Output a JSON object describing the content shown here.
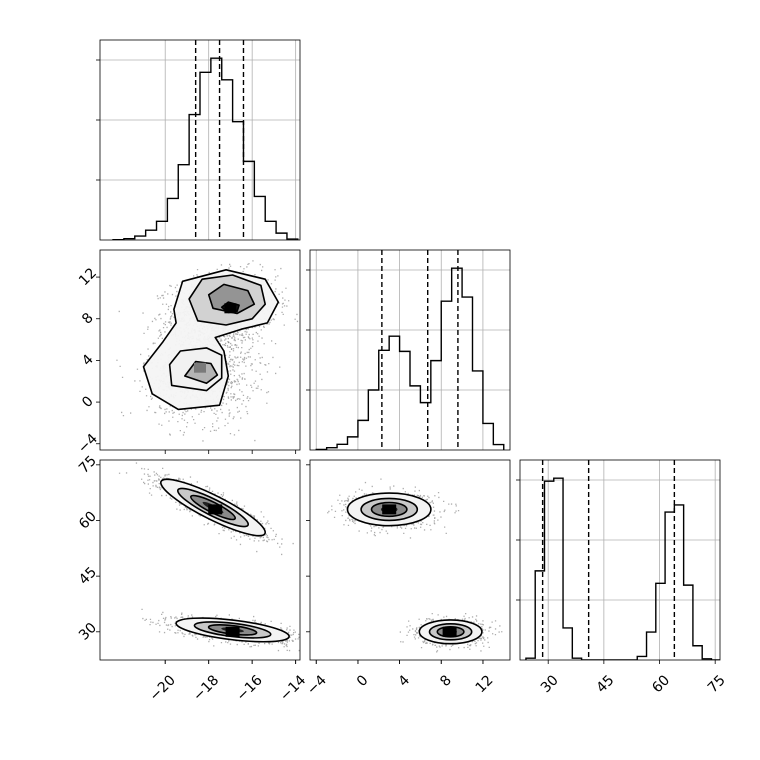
{
  "chart_data": {
    "type": "corner",
    "parameters": [
      {
        "range": [
          -23,
          -13.8
        ],
        "ticks": [
          -20,
          -18,
          -16,
          -14
        ],
        "tick_labels": [
          "−20",
          "−18",
          "−16",
          "−14"
        ],
        "quantiles": [
          -18.6,
          -17.5,
          -16.4
        ],
        "hist_bins": [
          -22.4,
          -21.9,
          -21.4,
          -20.9,
          -20.4,
          -19.9,
          -19.4,
          -18.9,
          -18.4,
          -17.9,
          -17.4,
          -16.9,
          -16.4,
          -15.9,
          -15.4,
          -14.9,
          -14.4,
          -13.9
        ],
        "hist_counts": [
          1,
          4,
          12,
          30,
          57,
          127,
          230,
          383,
          512,
          555,
          489,
          361,
          240,
          133,
          57,
          21,
          3
        ]
      },
      {
        "range": [
          -4.6,
          14.6
        ],
        "ticks": [
          -4,
          0,
          4,
          8,
          12
        ],
        "tick_labels": [
          "−4",
          "0",
          "4",
          "8",
          "12"
        ],
        "quantiles": [
          2.3,
          6.7,
          9.6
        ],
        "hist_bins": [
          -4,
          -3,
          -2,
          -1,
          0,
          1,
          2,
          3,
          4,
          5,
          6,
          7,
          8,
          9,
          10,
          11,
          12,
          13,
          14
        ],
        "hist_counts": [
          2,
          9,
          22,
          51,
          115,
          233,
          387,
          442,
          383,
          249,
          184,
          347,
          578,
          706,
          594,
          307,
          103,
          21
        ]
      },
      {
        "range": [
          22.4,
          76.3
        ],
        "ticks": [
          30,
          45,
          60,
          75
        ],
        "tick_labels": [
          "30",
          "45",
          "60",
          "75"
        ],
        "quantiles": [
          28.5,
          40.9,
          64
        ],
        "hist_bins": [
          24,
          26.5,
          29,
          31.5,
          34,
          36.5,
          39,
          41.5,
          44,
          46.5,
          49,
          51.5,
          54,
          56.5,
          59,
          61.5,
          64,
          66.5,
          69,
          71.5,
          74,
          76.5
        ],
        "hist_counts": [
          3,
          150,
          301,
          306,
          54,
          3,
          0,
          0,
          0,
          0,
          0,
          0,
          6,
          47,
          129,
          249,
          261,
          126,
          24,
          2,
          0
        ]
      }
    ],
    "pairs": [
      {
        "x_param": 0,
        "y_param": 1,
        "clusters": [
          {
            "center": [
              -17.3,
              9
            ],
            "sigma": [
              1.2,
              1.7
            ],
            "rho": 0.15,
            "weight": 0.55,
            "peak": [
              -17,
              9
            ]
          },
          {
            "center": [
              -18.4,
              3
            ],
            "sigma": [
              1.2,
              2.3
            ],
            "rho": 0.0,
            "weight": 0.45,
            "peak": [
              -18.4,
              3.3
            ]
          }
        ],
        "contours": [
          [
            [
              -19.6,
              8.9
            ],
            [
              -19.2,
              11.6
            ],
            [
              -17.2,
              12.7
            ],
            [
              -15.4,
              11.8
            ],
            [
              -14.8,
              9.6
            ],
            [
              -15.3,
              7.6
            ],
            [
              -16.5,
              7
            ],
            [
              -17.7,
              6.2
            ],
            [
              -17.3,
              4.9
            ],
            [
              -17.1,
              2.5
            ],
            [
              -17.5,
              -0.3
            ],
            [
              -19.4,
              -0.7
            ],
            [
              -20.6,
              0.8
            ],
            [
              -21,
              3.4
            ],
            [
              -20.1,
              5.8
            ],
            [
              -19.5,
              7.6
            ]
          ],
          [
            [
              -18.9,
              9.9
            ],
            [
              -18.3,
              11.8
            ],
            [
              -16.9,
              12.2
            ],
            [
              -15.6,
              11.2
            ],
            [
              -15.4,
              9.4
            ],
            [
              -16,
              8
            ],
            [
              -17.2,
              7.4
            ],
            [
              -18.5,
              7.8
            ]
          ],
          [
            [
              -18,
              10.3
            ],
            [
              -17.3,
              11.3
            ],
            [
              -16.2,
              10.7
            ],
            [
              -15.9,
              9.4
            ],
            [
              -16.7,
              8.5
            ],
            [
              -17.8,
              9
            ]
          ],
          [
            [
              -17.4,
              9.1
            ],
            [
              -17.1,
              9.6
            ],
            [
              -16.6,
              9.3
            ],
            [
              -16.7,
              8.7
            ],
            [
              -17.1,
              8.6
            ]
          ],
          [
            [
              -19.7,
              1.6
            ],
            [
              -19.8,
              3.6
            ],
            [
              -19.3,
              4.9
            ],
            [
              -18.1,
              5.2
            ],
            [
              -17.4,
              4.5
            ],
            [
              -17.4,
              2.3
            ],
            [
              -18.1,
              1.1
            ]
          ],
          [
            [
              -19.1,
              2.5
            ],
            [
              -18.6,
              3.9
            ],
            [
              -17.9,
              3.7
            ],
            [
              -17.6,
              2.6
            ],
            [
              -18.1,
              1.8
            ]
          ]
        ]
      },
      {
        "x_param": 0,
        "y_param": 2,
        "clusters": [
          {
            "center": [
              -17.8,
              63.5
            ],
            "sigma": [
              1.2,
              3.8
            ],
            "rho": -0.88,
            "weight": 0.5,
            "peak": [
              -17.7,
              63
            ]
          },
          {
            "center": [
              -16.9,
              30.5
            ],
            "sigma": [
              1.3,
              1.6
            ],
            "rho": -0.55,
            "weight": 0.5,
            "peak": [
              -16.9,
              30
            ]
          }
        ]
      },
      {
        "x_param": 1,
        "y_param": 2,
        "clusters": [
          {
            "center": [
              3,
              63
            ],
            "sigma": [
              2,
              2.2
            ],
            "rho": 0.0,
            "weight": 0.5,
            "peak": [
              3,
              63
            ]
          },
          {
            "center": [
              8.9,
              30
            ],
            "sigma": [
              1.5,
              1.6
            ],
            "rho": 0.0,
            "weight": 0.5,
            "peak": [
              8.8,
              30
            ]
          }
        ]
      }
    ]
  }
}
